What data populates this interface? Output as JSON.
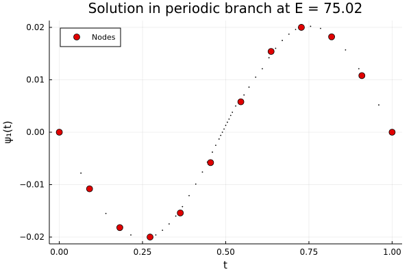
{
  "chart_data": {
    "type": "scatter",
    "title": "Solution in periodic branch at E = 75.02",
    "xlabel": "t",
    "ylabel": "ψ₁(t)",
    "xlim": [
      -0.03,
      1.03
    ],
    "ylim": [
      -0.0213,
      0.0213
    ],
    "x_ticks": [
      0.0,
      0.25,
      0.5,
      0.75,
      1.0
    ],
    "x_tick_labels": [
      "0.00",
      "0.25",
      "0.50",
      "0.75",
      "1.00"
    ],
    "y_ticks": [
      -0.02,
      -0.01,
      0.0,
      0.01,
      0.02
    ],
    "y_tick_labels": [
      "−0.02",
      "−0.01",
      "0.00",
      "0.01",
      "0.02"
    ],
    "grid": true,
    "legend_position": "top-left",
    "series": [
      {
        "name": "Nodes",
        "marker": "circle",
        "color": "#e00000",
        "x": [
          0.0,
          0.0909,
          0.1818,
          0.2727,
          0.3636,
          0.4545,
          0.5455,
          0.6364,
          0.7273,
          0.8182,
          0.9091,
          1.0
        ],
        "y": [
          0.0,
          -0.0108,
          -0.0182,
          -0.02,
          -0.0154,
          -0.0058,
          0.0058,
          0.0154,
          0.02,
          0.0182,
          0.0108,
          0.0
        ]
      },
      {
        "marker": "dot",
        "color": "#000000",
        "x": [
          0.065,
          0.14,
          0.215,
          0.29,
          0.31,
          0.33,
          0.35,
          0.37,
          0.39,
          0.41,
          0.43,
          0.445,
          0.46,
          0.47,
          0.48,
          0.485,
          0.49,
          0.495,
          0.5,
          0.505,
          0.51,
          0.515,
          0.52,
          0.53,
          0.54,
          0.555,
          0.57,
          0.59,
          0.61,
          0.63,
          0.65,
          0.67,
          0.69,
          0.71,
          0.755,
          0.785,
          0.86,
          0.9,
          0.96
        ],
        "y": [
          -0.0078,
          -0.0155,
          -0.0196,
          -0.0196,
          -0.0187,
          -0.0175,
          -0.016,
          -0.0142,
          -0.0121,
          -0.0099,
          -0.0076,
          -0.0057,
          -0.0038,
          -0.0025,
          -0.0013,
          -0.0006,
          0.0,
          0.0006,
          0.0013,
          0.0019,
          0.0025,
          0.0032,
          0.0038,
          0.005,
          0.0058,
          0.0071,
          0.0086,
          0.0105,
          0.0121,
          0.0142,
          0.016,
          0.0175,
          0.0187,
          0.0196,
          0.0202,
          0.0198,
          0.0157,
          0.0121,
          0.0052
        ]
      }
    ]
  }
}
